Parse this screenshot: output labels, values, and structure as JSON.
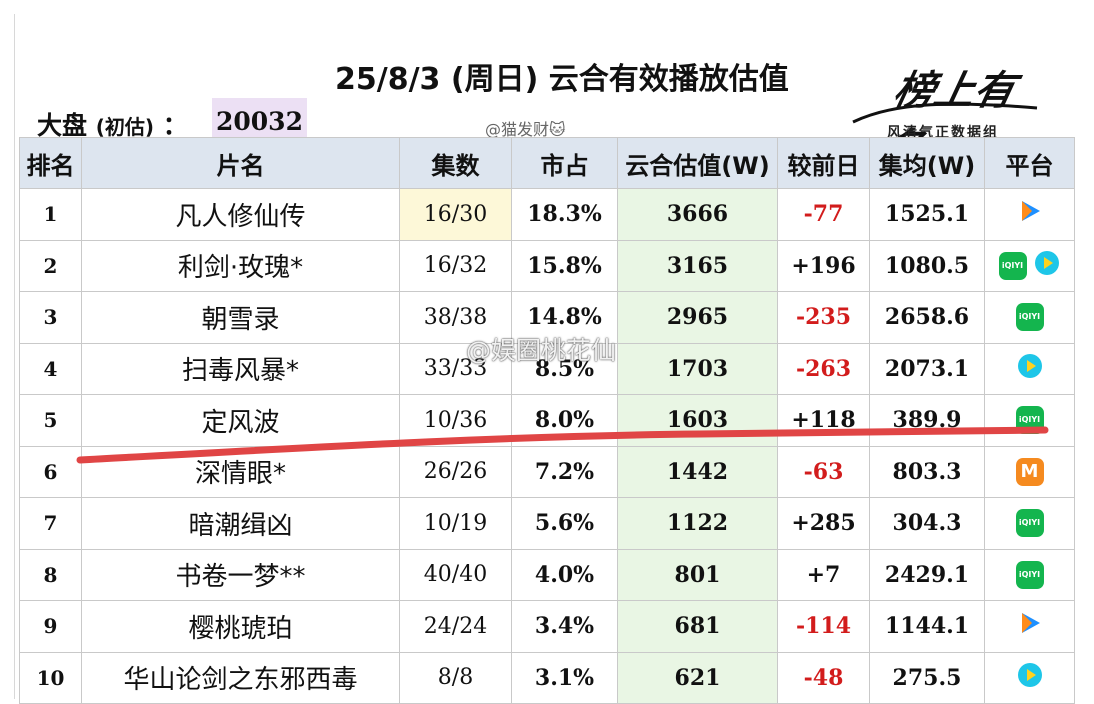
{
  "header": {
    "title": "25/8/3 (周日) 云合有效播放估值",
    "dapan_label": "大盘",
    "dapan_sub": "(初估)",
    "dapan_colon": "：",
    "dapan_value": "20032",
    "source": "@猫发财🐱"
  },
  "brand": {
    "script_text": "榜上有名",
    "tagline": "风清气正数据组"
  },
  "watermark": {
    "text": "@娱圈桃花仙"
  },
  "table": {
    "columns": [
      "排名",
      "片名",
      "集数",
      "市占",
      "云合估值(W)",
      "较前日",
      "集均(W)",
      "平台"
    ],
    "rows": [
      {
        "rank": "1",
        "name": "凡人修仙传",
        "episodes": "16/30",
        "share": "18.3%",
        "value": "3666",
        "change": "-77",
        "avg": "1525.1",
        "platforms": [
          "tencent"
        ]
      },
      {
        "rank": "2",
        "name": "利剑·玫瑰*",
        "episodes": "16/32",
        "share": "15.8%",
        "value": "3165",
        "change": "+196",
        "avg": "1080.5",
        "platforms": [
          "iqiyi",
          "youku"
        ]
      },
      {
        "rank": "3",
        "name": "朝雪录",
        "episodes": "38/38",
        "share": "14.8%",
        "value": "2965",
        "change": "-235",
        "avg": "2658.6",
        "platforms": [
          "iqiyi"
        ]
      },
      {
        "rank": "4",
        "name": "扫毒风暴*",
        "episodes": "33/33",
        "share": "8.5%",
        "value": "1703",
        "change": "-263",
        "avg": "2073.1",
        "platforms": [
          "youku"
        ]
      },
      {
        "rank": "5",
        "name": "定风波",
        "episodes": "10/36",
        "share": "8.0%",
        "value": "1603",
        "change": "+118",
        "avg": "389.9",
        "platforms": [
          "iqiyi"
        ]
      },
      {
        "rank": "6",
        "name": "深情眼*",
        "episodes": "26/26",
        "share": "7.2%",
        "value": "1442",
        "change": "-63",
        "avg": "803.3",
        "platforms": [
          "mango"
        ]
      },
      {
        "rank": "7",
        "name": "暗潮缉凶",
        "episodes": "10/19",
        "share": "5.6%",
        "value": "1122",
        "change": "+285",
        "avg": "304.3",
        "platforms": [
          "iqiyi"
        ]
      },
      {
        "rank": "8",
        "name": "书卷一梦**",
        "episodes": "40/40",
        "share": "4.0%",
        "value": "801",
        "change": "+7",
        "avg": "2429.1",
        "platforms": [
          "iqiyi"
        ]
      },
      {
        "rank": "9",
        "name": "樱桃琥珀",
        "episodes": "24/24",
        "share": "3.4%",
        "value": "681",
        "change": "-114",
        "avg": "1144.1",
        "platforms": [
          "tencent"
        ]
      },
      {
        "rank": "10",
        "name": "华山论剑之东邪西毒",
        "episodes": "8/8",
        "share": "3.1%",
        "value": "621",
        "change": "-48",
        "avg": "275.5",
        "platforms": [
          "youku"
        ]
      }
    ]
  },
  "platform_icons": {
    "iqiyi": {
      "icon": "iqiyi-icon",
      "text": "iQIYI",
      "color": "#14b54e"
    },
    "tencent": {
      "icon": "tencent-video-icon",
      "color": "#1e90ff"
    },
    "youku": {
      "icon": "youku-icon",
      "color": "#1ec6e8"
    },
    "mango": {
      "icon": "mango-tv-icon",
      "text": "M",
      "color": "#f58a1f"
    }
  },
  "colors": {
    "header_bg": "#dde5ef",
    "value_bg": "#e9f6e4",
    "negative": "#d21c1c",
    "annotation_stroke": "#e04545"
  }
}
